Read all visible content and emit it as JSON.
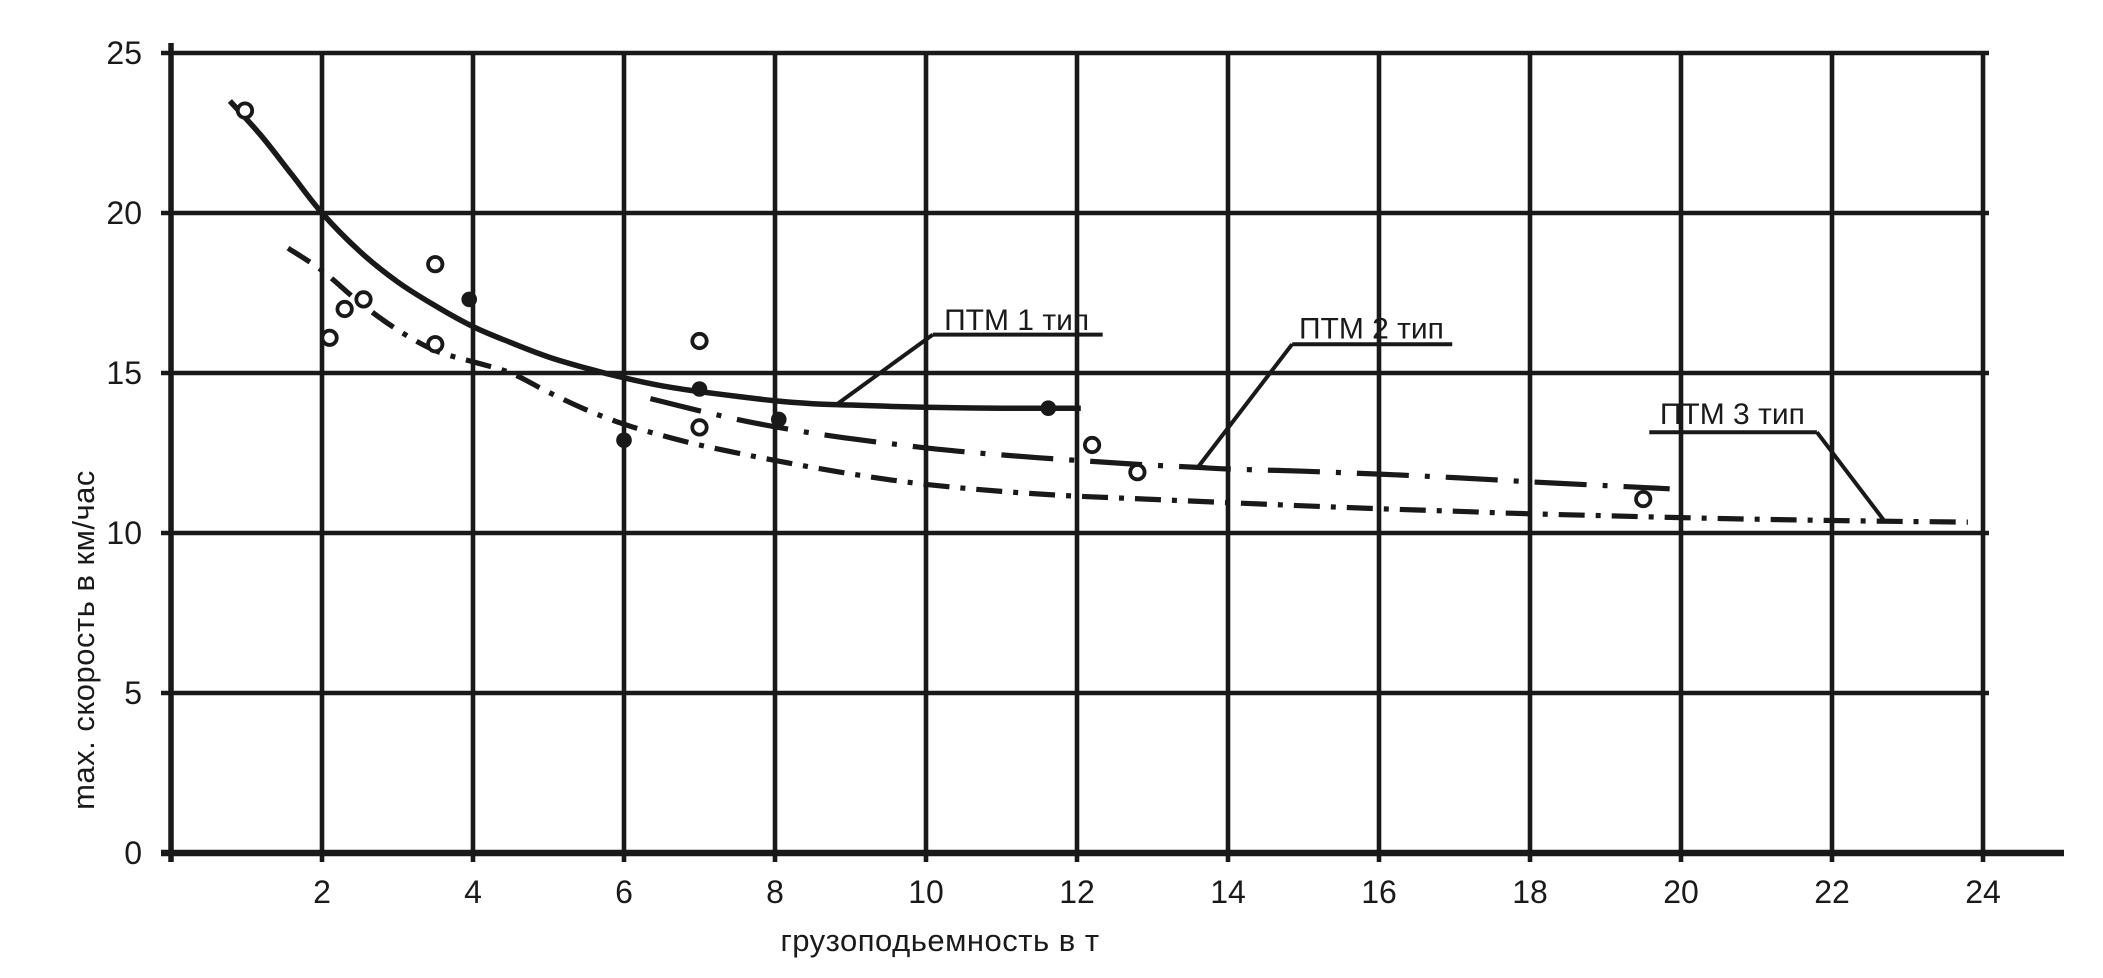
{
  "chart_data": {
    "type": "scatter",
    "title": "",
    "x_axis": {
      "label": "грузоподьемность в т",
      "ticks": [
        2,
        4,
        6,
        8,
        10,
        12,
        14,
        16,
        18,
        20,
        22,
        24
      ],
      "range": [
        0,
        24
      ],
      "grid_step": 2
    },
    "y_axis": {
      "label": "max. скорость в км/час",
      "ticks": [
        0,
        5,
        10,
        15,
        20,
        25
      ],
      "range": [
        0,
        25
      ],
      "grid_step": 5
    },
    "grid": "on",
    "legend_position": "inline-annotations",
    "series": [
      {
        "id": "ptm-1",
        "name": "ПТМ 1 тип",
        "line_style": "solid",
        "points": [
          [
            0.78,
            23.5
          ],
          [
            1.2,
            22.4
          ],
          [
            1.6,
            21.2
          ],
          [
            2,
            20.0
          ],
          [
            2.5,
            18.8
          ],
          [
            3,
            17.85
          ],
          [
            3.5,
            17.1
          ],
          [
            4,
            16.45
          ],
          [
            4.5,
            15.95
          ],
          [
            5,
            15.5
          ],
          [
            5.5,
            15.15
          ],
          [
            6,
            14.85
          ],
          [
            6.5,
            14.6
          ],
          [
            7,
            14.42
          ],
          [
            7.5,
            14.27
          ],
          [
            8,
            14.13
          ],
          [
            8.5,
            14.04
          ],
          [
            9,
            14.0
          ],
          [
            9.5,
            13.96
          ],
          [
            10,
            13.93
          ],
          [
            10.5,
            13.91
          ],
          [
            11,
            13.9
          ],
          [
            12.05,
            13.9
          ]
        ]
      },
      {
        "id": "ptm-2",
        "name": "ПТМ 2 тип",
        "line_style": "long-dash-dot",
        "points": [
          [
            6.35,
            14.2
          ],
          [
            7,
            13.82
          ],
          [
            7.5,
            13.55
          ],
          [
            8,
            13.32
          ],
          [
            8.5,
            13.12
          ],
          [
            9,
            12.95
          ],
          [
            9.5,
            12.8
          ],
          [
            10,
            12.66
          ],
          [
            10.5,
            12.54
          ],
          [
            11,
            12.44
          ],
          [
            11.5,
            12.35
          ],
          [
            12,
            12.27
          ],
          [
            12.5,
            12.19
          ],
          [
            13,
            12.12
          ],
          [
            13.6,
            12.05
          ],
          [
            14,
            12.0
          ],
          [
            15,
            11.93
          ],
          [
            16,
            11.84
          ],
          [
            17,
            11.73
          ],
          [
            18,
            11.6
          ],
          [
            19,
            11.48
          ],
          [
            19.85,
            11.38
          ]
        ]
      },
      {
        "id": "ptm-3",
        "name": "ПТМ 3 тип",
        "line_style": "dash-dot",
        "points": [
          [
            1.55,
            18.9
          ],
          [
            2,
            18.2
          ],
          [
            2.5,
            17.2
          ],
          [
            3,
            16.35
          ],
          [
            3.5,
            15.7
          ],
          [
            4,
            15.35
          ],
          [
            4.5,
            15.0
          ],
          [
            5,
            14.4
          ],
          [
            5.5,
            13.85
          ],
          [
            6,
            13.4
          ],
          [
            6.5,
            13.05
          ],
          [
            7,
            12.75
          ],
          [
            7.5,
            12.5
          ],
          [
            8,
            12.27
          ],
          [
            8.5,
            12.05
          ],
          [
            9,
            11.85
          ],
          [
            9.5,
            11.67
          ],
          [
            10,
            11.52
          ],
          [
            10.5,
            11.4
          ],
          [
            11,
            11.3
          ],
          [
            11.5,
            11.22
          ],
          [
            12,
            11.15
          ],
          [
            12.5,
            11.1
          ],
          [
            13,
            11.05
          ],
          [
            14,
            10.95
          ],
          [
            15,
            10.85
          ],
          [
            16,
            10.76
          ],
          [
            17,
            10.68
          ],
          [
            18,
            10.6
          ],
          [
            19,
            10.54
          ],
          [
            20,
            10.48
          ],
          [
            21,
            10.43
          ],
          [
            22,
            10.39
          ],
          [
            23,
            10.36
          ],
          [
            23.8,
            10.34
          ]
        ]
      }
    ],
    "scatter_points": {
      "open": [
        [
          0.98,
          23.2
        ],
        [
          2.1,
          16.1
        ],
        [
          2.3,
          17.0
        ],
        [
          2.55,
          17.3
        ],
        [
          3.5,
          18.4
        ],
        [
          3.5,
          15.9
        ],
        [
          7,
          16.0
        ],
        [
          7,
          13.3
        ],
        [
          12.2,
          12.75
        ],
        [
          12.8,
          11.9
        ],
        [
          19.5,
          11.06
        ]
      ],
      "filled": [
        [
          3.95,
          17.3
        ],
        [
          6,
          12.9
        ],
        [
          7,
          14.5
        ],
        [
          8.05,
          13.55
        ],
        [
          11.62,
          13.9
        ]
      ]
    },
    "annotations": [
      {
        "id": "ptm-1",
        "text": "ПТМ 1 тип",
        "text_xy": [
          11.2,
          16.35
        ],
        "underline": [
          [
            10.09,
            16.2
          ],
          [
            12.34,
            16.2
          ]
        ],
        "leader": [
          [
            10.09,
            16.2
          ],
          [
            8.8,
            13.99
          ]
        ]
      },
      {
        "id": "ptm-2",
        "text": "ПТМ 2 тип",
        "text_xy": [
          15.9,
          16.08
        ],
        "underline": [
          [
            14.85,
            15.9
          ],
          [
            16.97,
            15.9
          ]
        ],
        "leader": [
          [
            14.85,
            15.9
          ],
          [
            13.6,
            12.05
          ]
        ]
      },
      {
        "id": "ptm-3",
        "text": "ПТМ 3 тип",
        "text_xy": [
          20.68,
          13.4
        ],
        "underline": [
          [
            19.58,
            13.15
          ],
          [
            21.8,
            13.15
          ]
        ],
        "leader": [
          [
            21.8,
            13.15
          ],
          [
            22.68,
            10.42
          ]
        ]
      }
    ],
    "colors": {
      "ink": "#191919",
      "background": "#ffffff"
    }
  }
}
